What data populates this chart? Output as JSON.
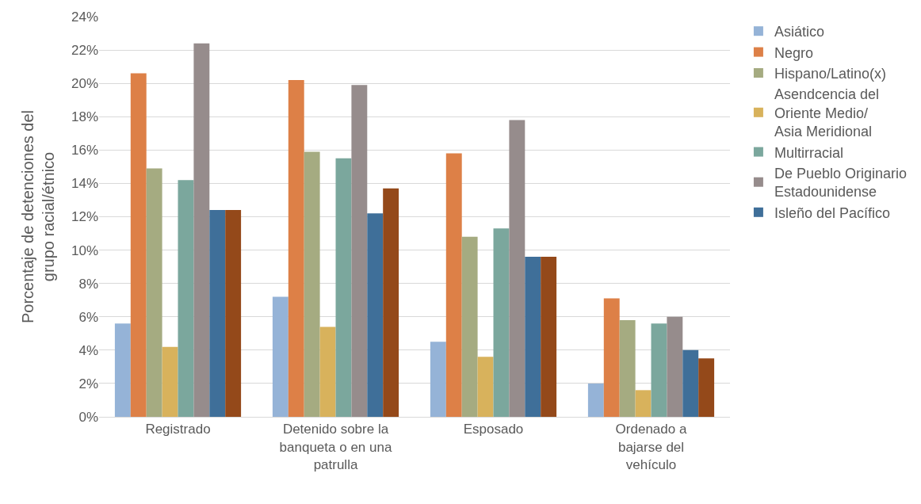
{
  "chart_data": {
    "type": "bar",
    "ylabel": "Porcentaje de detenciones del\ngrupo racial/étnico",
    "categories": [
      "Registrado",
      "Detenido sobre la\nbanqueta o en una\npatrulla",
      "Esposado",
      "Ordenado a\nbajarse del\nvehículo"
    ],
    "series": [
      {
        "name": "Asiático",
        "color": "#95b3d7",
        "values": [
          5.6,
          7.2,
          4.5,
          2.0
        ]
      },
      {
        "name": "Negro",
        "color": "#dd8047",
        "values": [
          20.6,
          20.2,
          15.8,
          7.1
        ]
      },
      {
        "name": "Hispano/Latino(x)",
        "color": "#a5ab81",
        "values": [
          14.9,
          15.9,
          10.8,
          5.8
        ]
      },
      {
        "name": "Asendcencia del\nOriente Medio/\nAsia Meridional",
        "color": "#d8b25c",
        "values": [
          4.2,
          5.4,
          3.6,
          1.6
        ]
      },
      {
        "name": "Multirracial",
        "color": "#7ba79d",
        "values": [
          14.2,
          15.5,
          11.3,
          5.6
        ]
      },
      {
        "name": "De Pueblo Originario\nEstadounidense",
        "color": "#968c8c",
        "values": [
          22.4,
          19.9,
          17.8,
          6.0
        ]
      },
      {
        "name": "Isleño del Pacífico",
        "color": "#3f6f99",
        "values": [
          12.4,
          12.2,
          9.6,
          4.0
        ]
      },
      {
        "color": "#94491a",
        "values": [
          12.4,
          13.7,
          9.6,
          3.5
        ]
      }
    ],
    "ylim": [
      0,
      24
    ],
    "yticks": [
      {
        "value": 0,
        "label": "0%"
      },
      {
        "value": 2,
        "label": "2%"
      },
      {
        "value": 4,
        "label": "4%"
      },
      {
        "value": 6,
        "label": "6%"
      },
      {
        "value": 8,
        "label": "8%"
      },
      {
        "value": 10,
        "label": "10%"
      },
      {
        "value": 12,
        "label": "12%"
      },
      {
        "value": 14,
        "label": "14%"
      },
      {
        "value": 16,
        "label": "16%"
      },
      {
        "value": 18,
        "label": "18%"
      },
      {
        "value": 20,
        "label": "20%"
      },
      {
        "value": 22,
        "label": "22%"
      },
      {
        "value": 24,
        "label": "24%"
      }
    ],
    "grid": "y",
    "legend": "right"
  }
}
